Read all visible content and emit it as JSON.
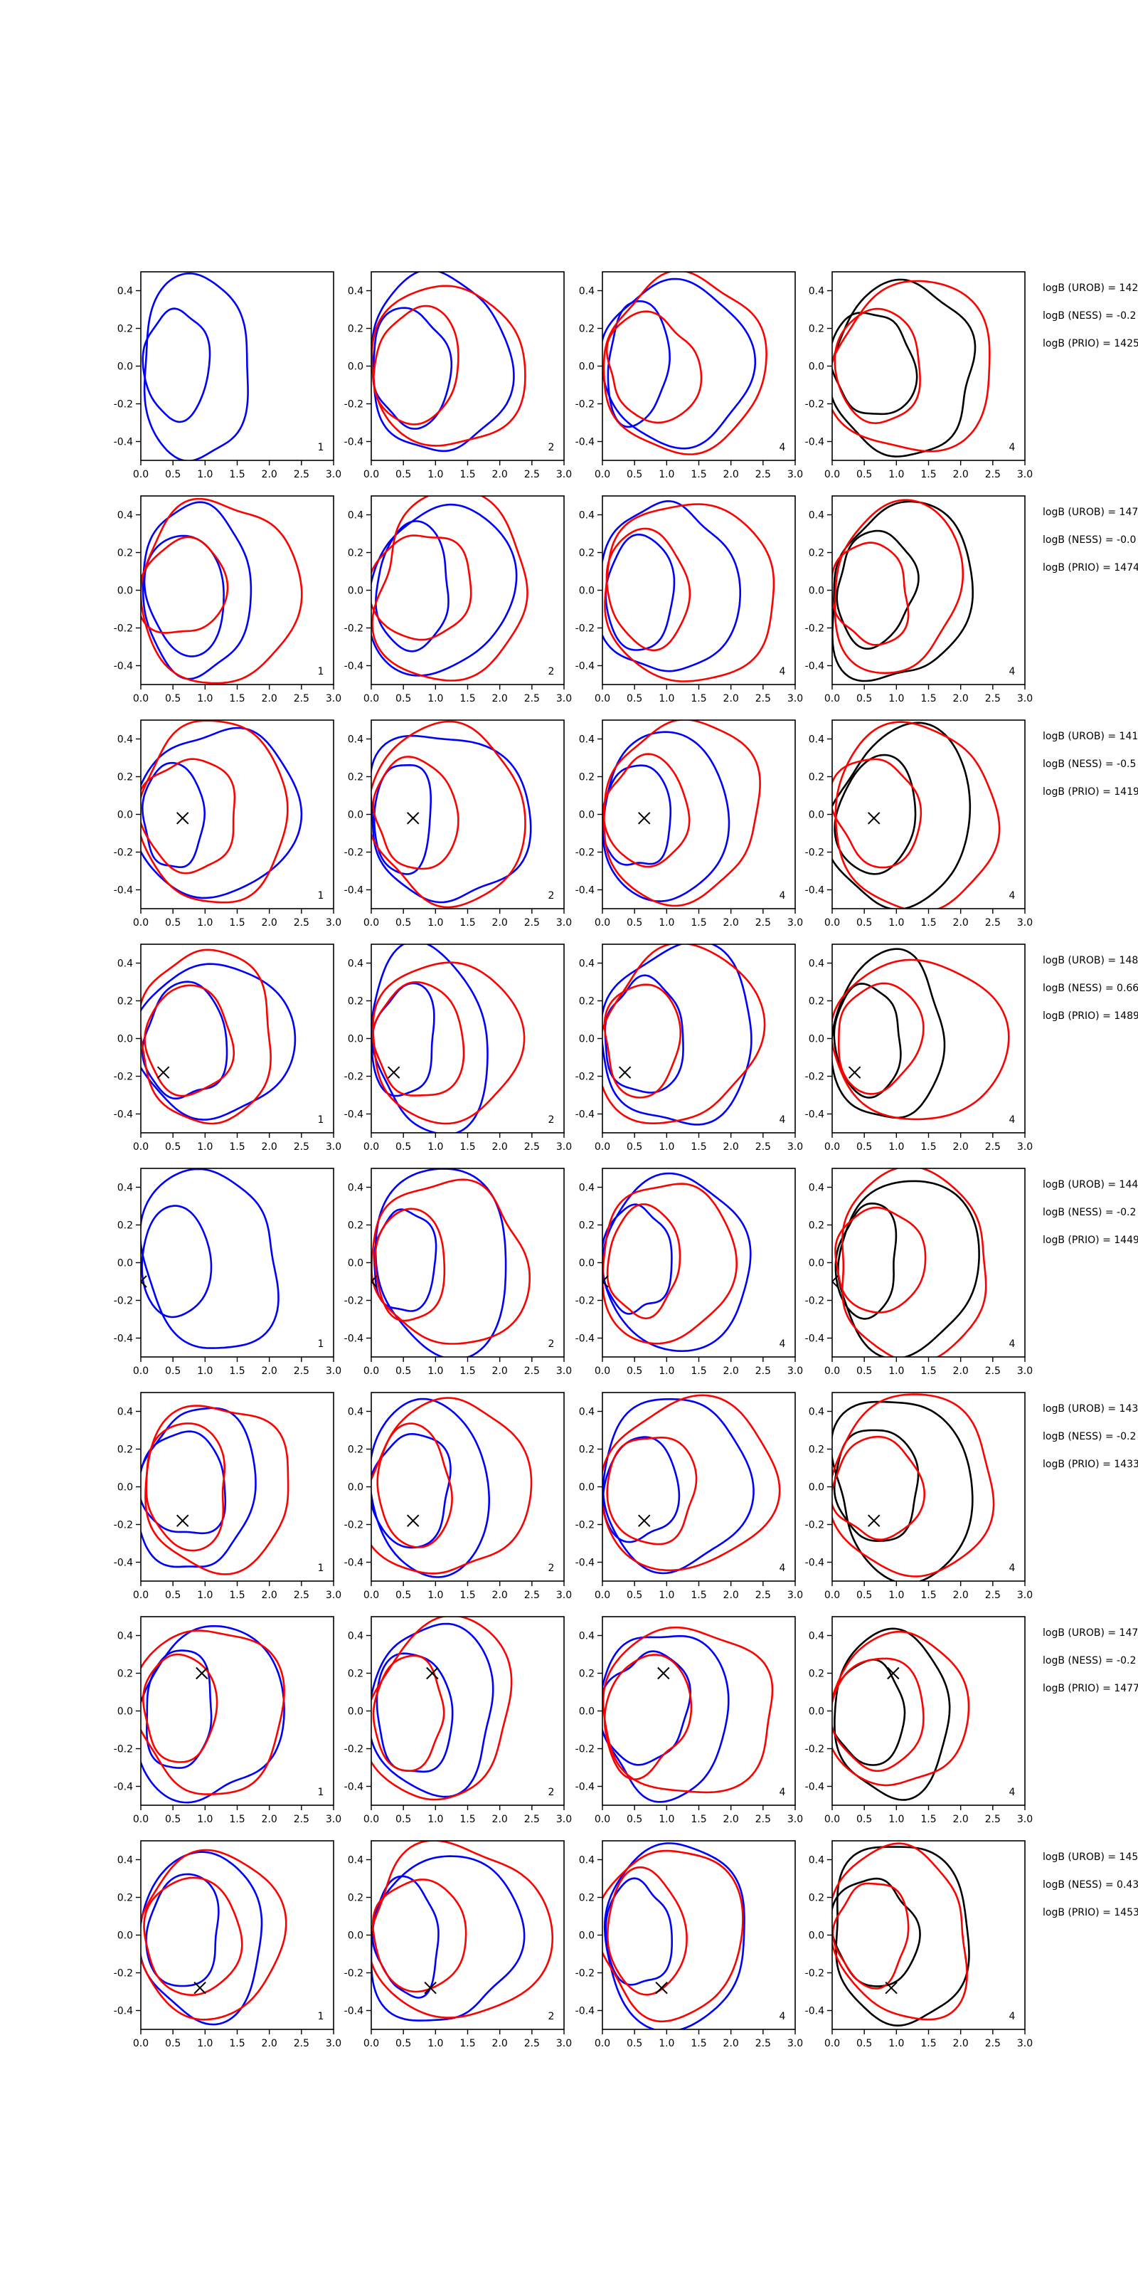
{
  "chart_data": {
    "type": "contour_grid",
    "xlim": [
      0,
      3
    ],
    "ylim": [
      -0.5,
      0.5
    ],
    "xticks": [
      {
        "value": 0,
        "label": "0.0"
      },
      0.5,
      {
        "value": 1,
        "label": "1.0"
      },
      1.5,
      {
        "value": 2,
        "label": "2.0"
      },
      2.5,
      {
        "value": 3,
        "label": "3.0"
      }
    ],
    "yticks": [
      -0.4,
      -0.2,
      {
        "value": 0,
        "label": "0.0"
      },
      0.2,
      0.4
    ],
    "rows": [
      {
        "marker": null,
        "panels": [
          {
            "label": "1",
            "colors": [
              "#0000ff"
            ]
          },
          {
            "label": "2",
            "colors": [
              "#0000ff",
              "#ff0000"
            ]
          },
          {
            "label": "4",
            "colors": [
              "#0000ff",
              "#ff0000"
            ]
          },
          {
            "label": "4",
            "colors": [
              "#000000",
              "#ff0000"
            ]
          }
        ],
        "annotations": [
          "logB (UROB) = 142",
          "logB (NESS) = -0.2",
          "logB (PRIO) = 1425"
        ]
      },
      {
        "marker": null,
        "panels": [
          {
            "label": "1",
            "colors": [
              "#0000ff",
              "#ff0000"
            ]
          },
          {
            "label": "2",
            "colors": [
              "#0000ff",
              "#ff0000"
            ]
          },
          {
            "label": "4",
            "colors": [
              "#0000ff",
              "#ff0000"
            ]
          },
          {
            "label": "4",
            "colors": [
              "#000000",
              "#ff0000"
            ]
          }
        ],
        "annotations": [
          "logB (UROB) = 147",
          "logB (NESS) = -0.0",
          "logB (PRIO) = 1474"
        ]
      },
      {
        "marker": {
          "x": 0.65,
          "y": -0.02
        },
        "panels": [
          {
            "label": "1",
            "colors": [
              "#0000ff",
              "#ff0000"
            ]
          },
          {
            "label": "2",
            "colors": [
              "#0000ff",
              "#ff0000"
            ]
          },
          {
            "label": "4",
            "colors": [
              "#0000ff",
              "#ff0000"
            ]
          },
          {
            "label": "4",
            "colors": [
              "#000000",
              "#ff0000"
            ]
          }
        ],
        "annotations": [
          "logB (UROB) = 141",
          "logB (NESS) = -0.5",
          "logB (PRIO) = 1419"
        ]
      },
      {
        "marker": {
          "x": 0.35,
          "y": -0.18
        },
        "panels": [
          {
            "label": "1",
            "colors": [
              "#0000ff",
              "#ff0000"
            ]
          },
          {
            "label": "2",
            "colors": [
              "#0000ff",
              "#ff0000"
            ]
          },
          {
            "label": "4",
            "colors": [
              "#0000ff",
              "#ff0000"
            ]
          },
          {
            "label": "4",
            "colors": [
              "#000000",
              "#ff0000"
            ]
          }
        ],
        "annotations": [
          "logB (UROB) = 148",
          "logB (NESS) = 0.66",
          "logB (PRIO) = 1489"
        ]
      },
      {
        "marker": {
          "x": 0.0,
          "y": -0.1
        },
        "panels": [
          {
            "label": "1",
            "colors": [
              "#0000ff"
            ]
          },
          {
            "label": "2",
            "colors": [
              "#0000ff",
              "#ff0000"
            ]
          },
          {
            "label": "4",
            "colors": [
              "#0000ff",
              "#ff0000"
            ]
          },
          {
            "label": "4",
            "colors": [
              "#000000",
              "#ff0000"
            ]
          }
        ],
        "annotations": [
          "logB (UROB) = 144",
          "logB (NESS) = -0.2",
          "logB (PRIO) = 1449"
        ]
      },
      {
        "marker": {
          "x": 0.65,
          "y": -0.18
        },
        "panels": [
          {
            "label": "1",
            "colors": [
              "#0000ff",
              "#ff0000"
            ]
          },
          {
            "label": "2",
            "colors": [
              "#0000ff",
              "#ff0000"
            ]
          },
          {
            "label": "4",
            "colors": [
              "#0000ff",
              "#ff0000"
            ]
          },
          {
            "label": "4",
            "colors": [
              "#000000",
              "#ff0000"
            ]
          }
        ],
        "annotations": [
          "logB (UROB) = 143",
          "logB (NESS) = -0.2",
          "logB (PRIO) = 1433"
        ]
      },
      {
        "marker": {
          "x": 0.95,
          "y": 0.2
        },
        "panels": [
          {
            "label": "1",
            "colors": [
              "#0000ff",
              "#ff0000"
            ]
          },
          {
            "label": "2",
            "colors": [
              "#0000ff",
              "#ff0000"
            ]
          },
          {
            "label": "4",
            "colors": [
              "#0000ff",
              "#ff0000"
            ]
          },
          {
            "label": "4",
            "colors": [
              "#000000",
              "#ff0000"
            ]
          }
        ],
        "annotations": [
          "logB (UROB) = 147",
          "logB (NESS) = -0.2",
          "logB (PRIO) = 1477"
        ]
      },
      {
        "marker": {
          "x": 0.92,
          "y": -0.28
        },
        "panels": [
          {
            "label": "1",
            "colors": [
              "#0000ff",
              "#ff0000"
            ]
          },
          {
            "label": "2",
            "colors": [
              "#0000ff",
              "#ff0000"
            ]
          },
          {
            "label": "4",
            "colors": [
              "#0000ff",
              "#ff0000"
            ]
          },
          {
            "label": "4",
            "colors": [
              "#000000",
              "#ff0000"
            ]
          }
        ],
        "annotations": [
          "logB (UROB) = 145",
          "logB (NESS) = 0.43",
          "logB (PRIO) = 1453"
        ]
      }
    ]
  }
}
